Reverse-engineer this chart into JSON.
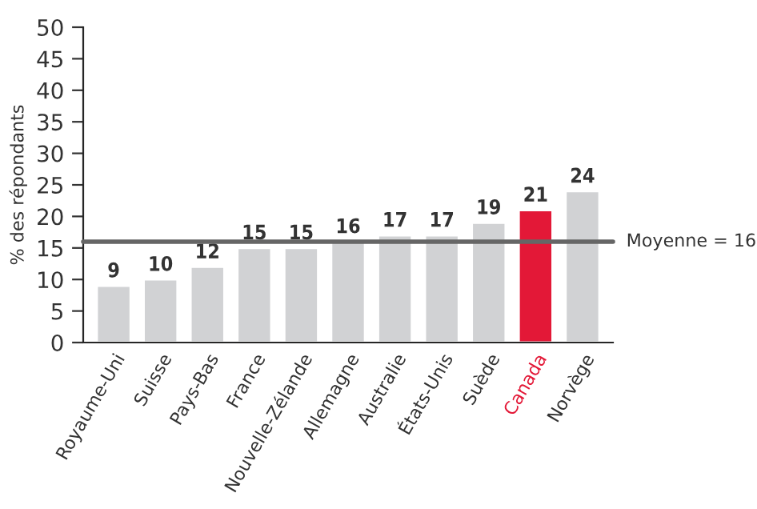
{
  "chart_data": {
    "type": "bar",
    "ylabel": "% des répondants",
    "categories": [
      "Royaume-Uni",
      "Suisse",
      "Pays-Bas",
      "France",
      "Nouvelle-Zélande",
      "Allemagne",
      "Australie",
      "États-Unis",
      "Suède",
      "Canada",
      "Norvège"
    ],
    "values": [
      9,
      10,
      12,
      15,
      15,
      16,
      17,
      17,
      19,
      21,
      24
    ],
    "colors": [
      "#d1d2d4",
      "#d1d2d4",
      "#d1d2d4",
      "#d1d2d4",
      "#d1d2d4",
      "#d1d2d4",
      "#d1d2d4",
      "#d1d2d4",
      "#d1d2d4",
      "#e31837",
      "#d1d2d4"
    ],
    "ylim": [
      0,
      50
    ],
    "yticks": [
      0,
      5,
      10,
      15,
      20,
      25,
      30,
      35,
      40,
      45,
      50
    ],
    "data_labels": true,
    "ref_lines": [
      {
        "axis": "y",
        "value": 16,
        "label": "Moyenne = 16",
        "color": "#666666"
      }
    ],
    "grid": false,
    "legend": false
  }
}
